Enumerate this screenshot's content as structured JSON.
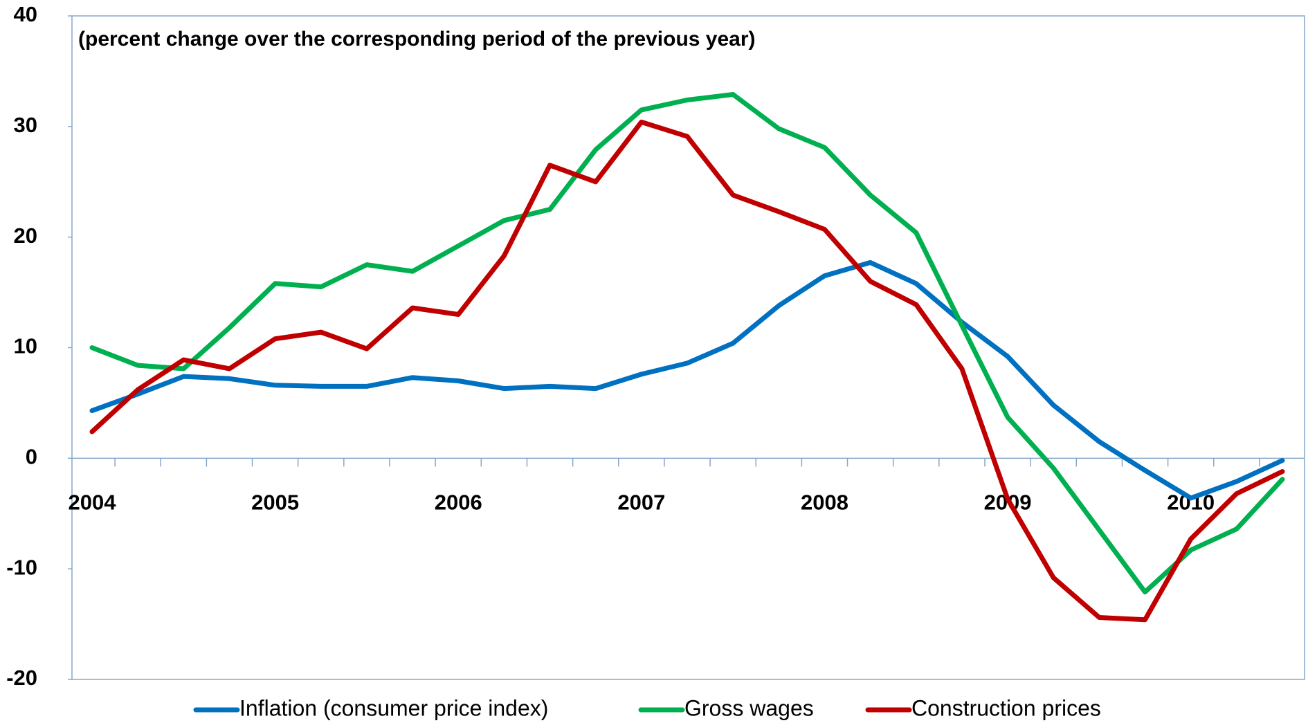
{
  "chart_data": {
    "type": "line",
    "subtitle": "(percent change over the corresponding period of the previous year)",
    "categories": [
      "2004",
      null,
      null,
      null,
      "2005",
      null,
      null,
      null,
      "2006",
      null,
      null,
      null,
      "2007",
      null,
      null,
      null,
      "2008",
      null,
      null,
      null,
      "2009",
      null,
      null,
      null,
      "2010",
      null,
      null
    ],
    "series": [
      {
        "name": "Inflation (consumer price index)",
        "color": "#0070c0",
        "values": [
          4.3,
          5.8,
          7.4,
          7.2,
          6.6,
          6.5,
          6.5,
          7.3,
          7.0,
          6.3,
          6.5,
          6.3,
          7.6,
          8.6,
          10.4,
          13.8,
          16.5,
          17.7,
          15.8,
          12.3,
          9.2,
          4.8,
          1.5,
          -1.1,
          -3.6,
          -2.1,
          -0.2
        ]
      },
      {
        "name": "Gross wages",
        "color": "#00b050",
        "values": [
          10.0,
          8.4,
          8.1,
          11.8,
          15.8,
          15.5,
          17.5,
          16.9,
          19.2,
          21.5,
          22.5,
          27.9,
          31.5,
          32.4,
          32.9,
          29.8,
          28.1,
          23.8,
          20.4,
          12.0,
          3.7,
          -0.9,
          -6.5,
          -12.1,
          -8.3,
          -6.4,
          -1.9
        ]
      },
      {
        "name": "Construction prices",
        "color": "#c00000",
        "values": [
          2.4,
          6.2,
          8.9,
          8.1,
          10.8,
          11.4,
          9.9,
          13.6,
          13.0,
          18.3,
          26.5,
          25.0,
          30.4,
          29.1,
          23.8,
          22.3,
          20.7,
          16.0,
          13.9,
          8.1,
          -3.7,
          -10.8,
          -14.4,
          -14.6,
          -7.3,
          -3.2,
          -1.2
        ]
      }
    ],
    "ylim": [
      -20,
      40
    ],
    "yticks": [
      -20,
      -10,
      0,
      10,
      20,
      30,
      40
    ],
    "legend": "bottom"
  }
}
